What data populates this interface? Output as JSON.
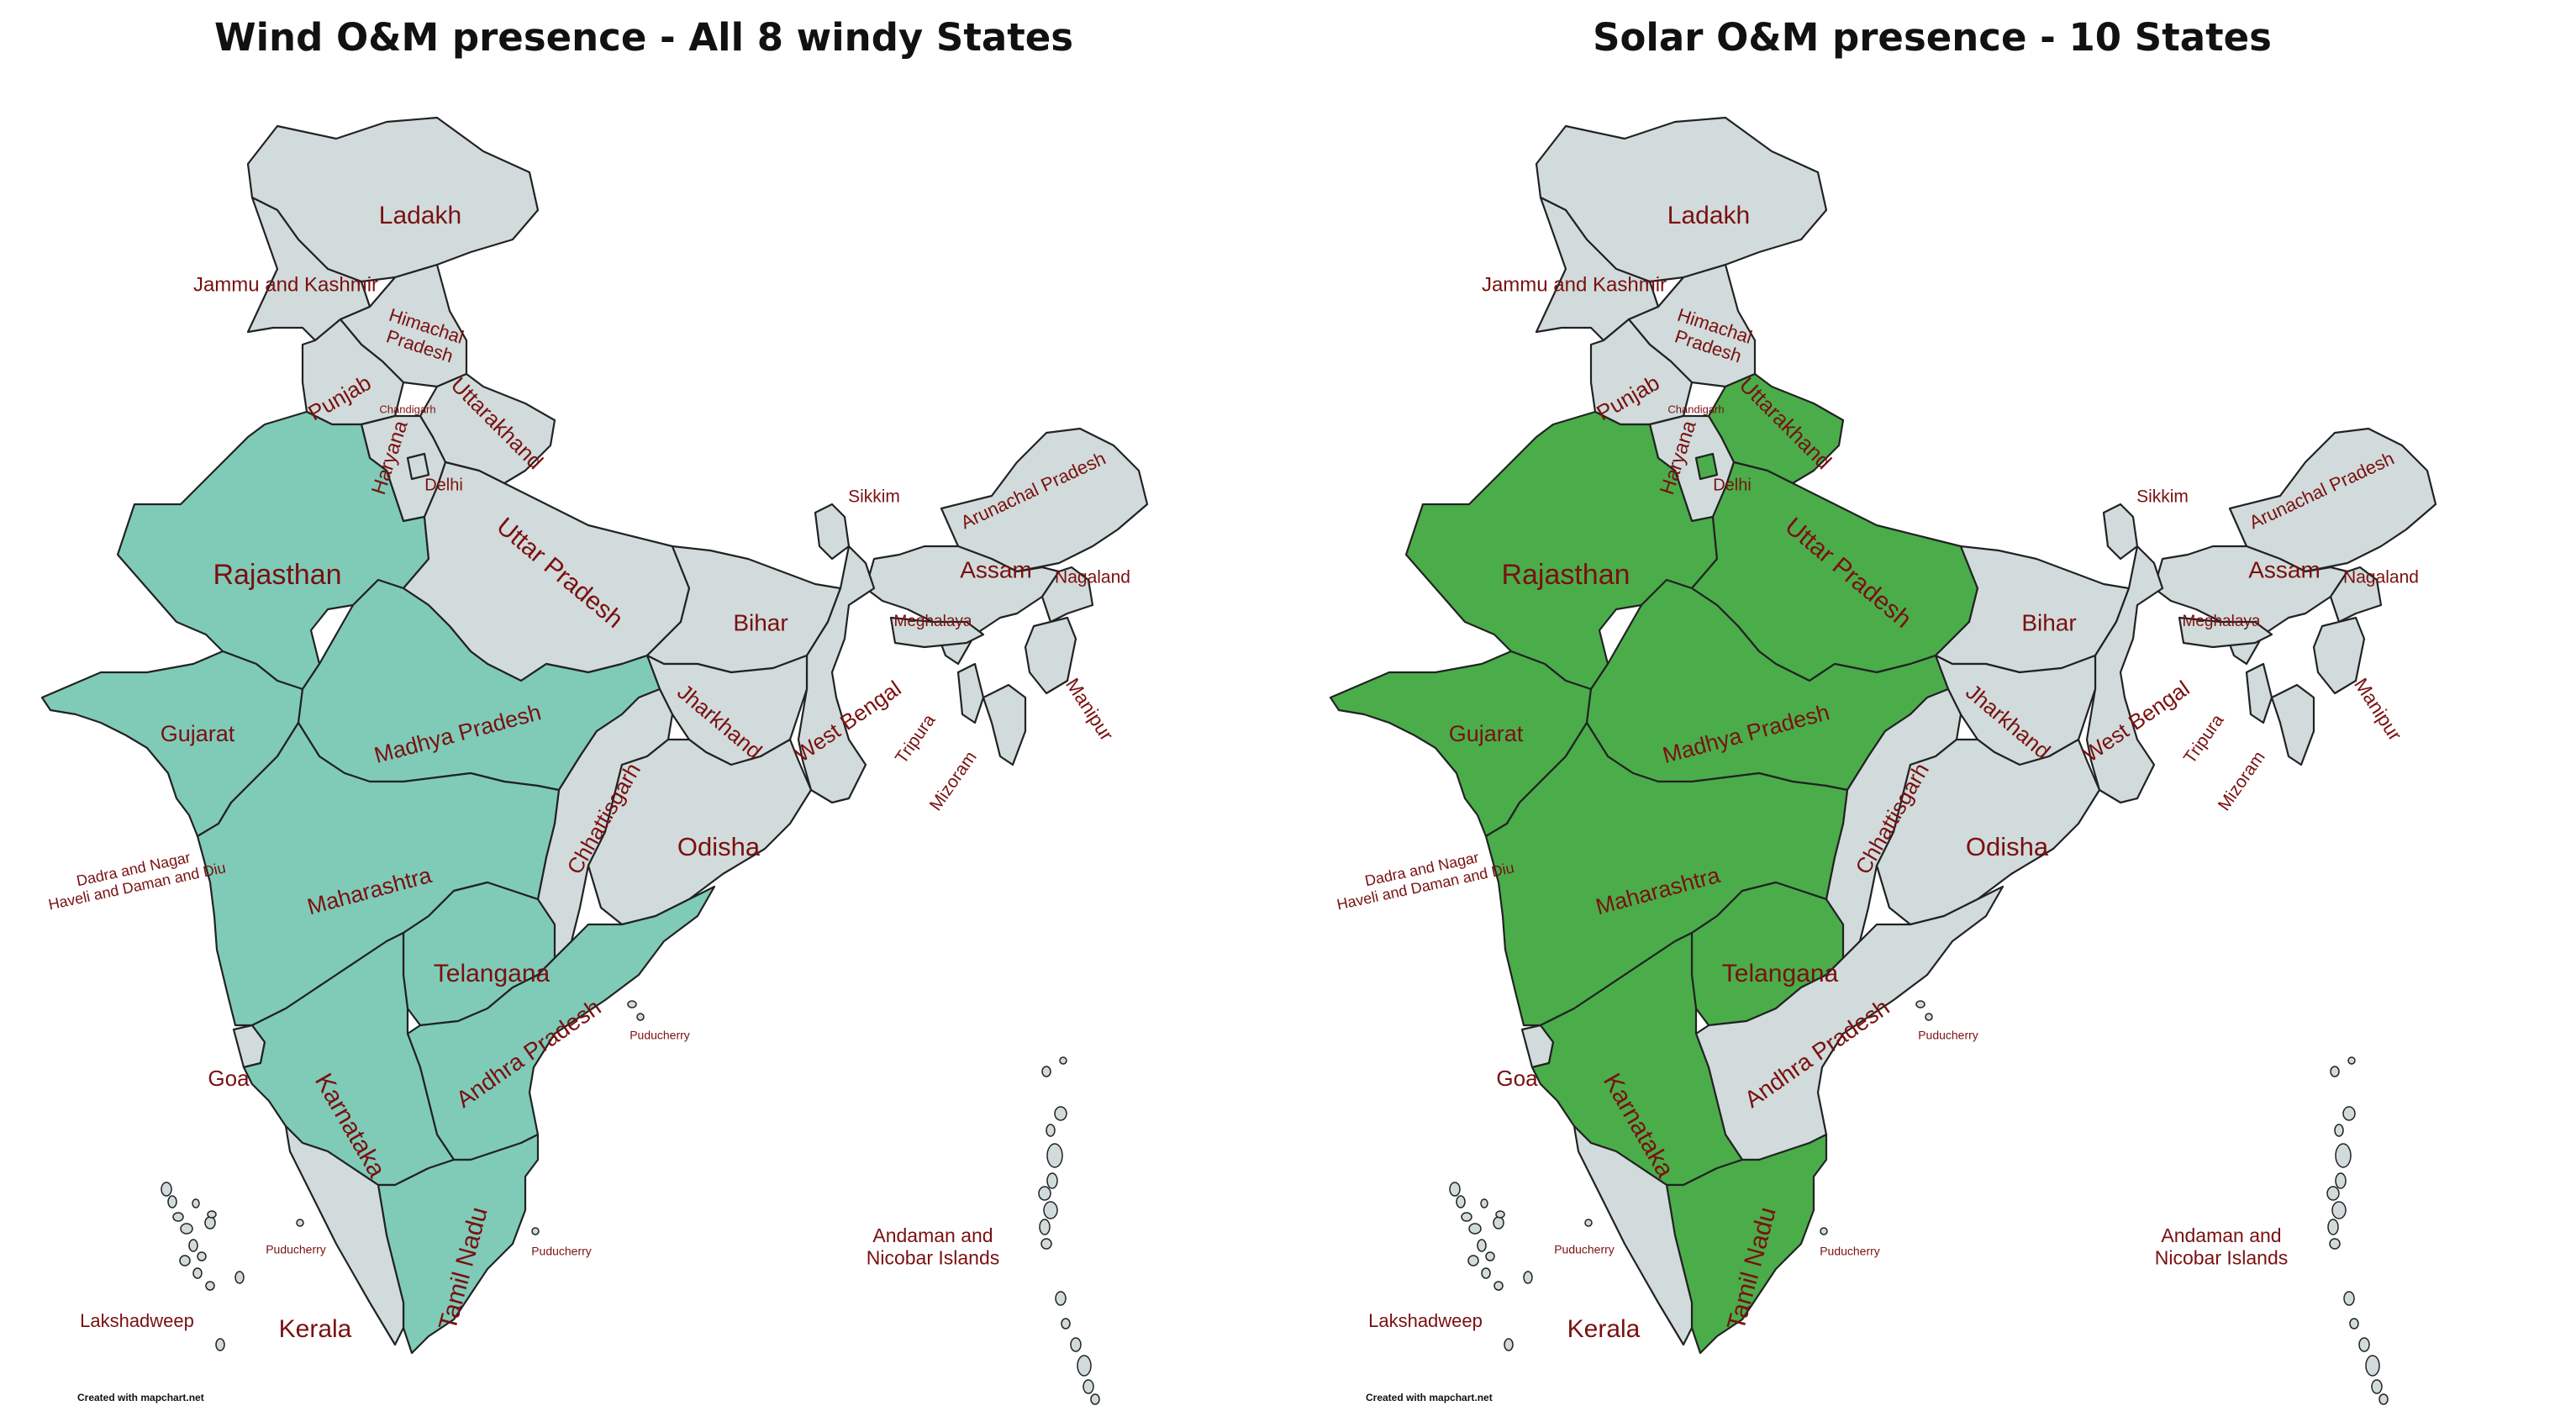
{
  "panels": [
    {
      "title": "Wind O&M presence - All 8 windy States",
      "credit": "Created with mapchart.net",
      "colors": {
        "highlight": "#7fcbb8",
        "base": "#d1dbdb"
      },
      "highlighted": [
        "Rajasthan",
        "Gujarat",
        "Madhya Pradesh",
        "Maharashtra",
        "Karnataka",
        "Andhra Pradesh",
        "Tamil Nadu",
        "Telangana"
      ]
    },
    {
      "title": "Solar O&M presence - 10 States",
      "credit": "Created with mapchart.net",
      "colors": {
        "highlight": "#4aad4a",
        "base": "#d1dbdb"
      },
      "highlighted": [
        "Rajasthan",
        "Gujarat",
        "Madhya Pradesh",
        "Maharashtra",
        "Karnataka",
        "Tamil Nadu",
        "Telangana",
        "Uttar Pradesh",
        "Uttarakhand",
        "Delhi"
      ]
    }
  ],
  "labels": {
    "ladakh": "Ladakh",
    "jk": "Jammu and Kashmir",
    "hp": "Himachal Pradesh",
    "punjab": "Punjab",
    "chandigarh": "Chandigarh",
    "uttarakhand": "Uttarakhand",
    "haryana": "Haryana",
    "delhi": "Delhi",
    "rajasthan": "Rajasthan",
    "up": "Uttar Pradesh",
    "sikkim": "Sikkim",
    "arunachal": "Arunachal Pradesh",
    "assam": "Assam",
    "nagaland": "Nagaland",
    "meghalaya": "Meghalaya",
    "bihar": "Bihar",
    "manipur": "Manipur",
    "gujarat": "Gujarat",
    "mp": "Madhya Pradesh",
    "jharkhand": "Jharkhand",
    "wb": "West Bengal",
    "tripura": "Tripura",
    "mizoram": "Mizoram",
    "chhattisgarh": "Chhattisgarh",
    "odisha": "Odisha",
    "dnh": "Dadra and Nagar Haveli and Daman and Diu",
    "maharashtra": "Maharashtra",
    "telangana": "Telangana",
    "ap": "Andhra Pradesh",
    "puducherry": "Puducherry",
    "goa": "Goa",
    "karnataka": "Karnataka",
    "tn": "Tamil Nadu",
    "kerala": "Kerala",
    "lakshadweep": "Lakshadweep",
    "andaman": "Andaman and Nicobar Islands"
  }
}
